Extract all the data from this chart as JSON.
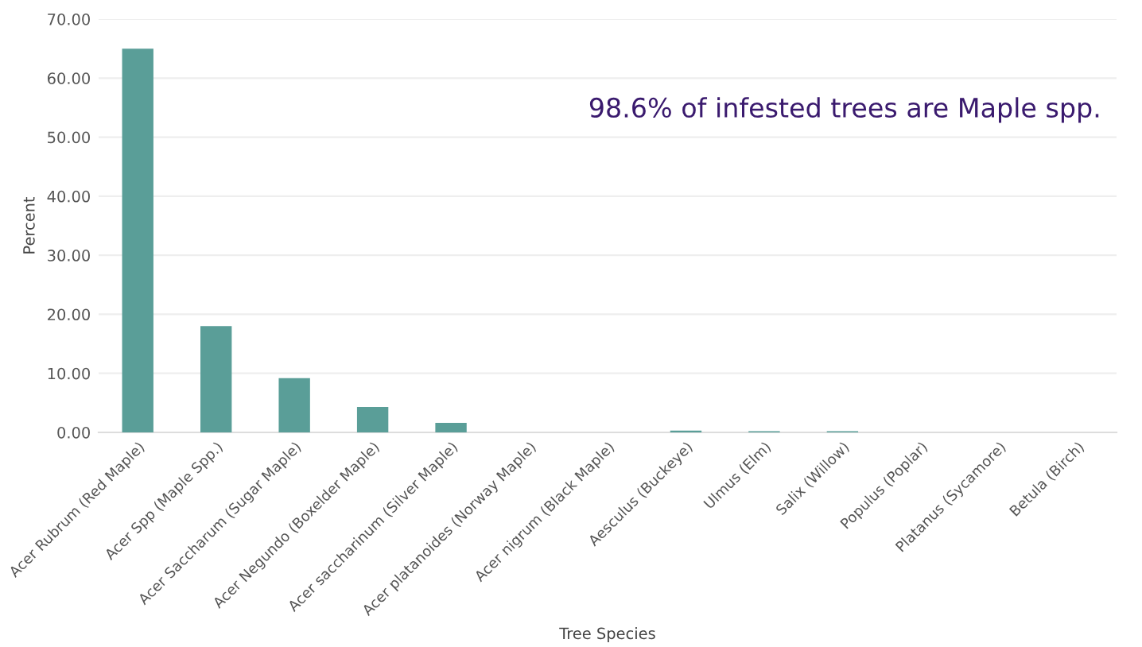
{
  "chart_data": {
    "type": "bar",
    "xlabel": "Tree Species",
    "ylabel": "Percent",
    "categories": [
      "Acer Rubrum (Red Maple)",
      "Acer Spp (Maple Spp.)",
      "Acer Saccharum (Sugar Maple)",
      "Acer Negundo (Boxelder Maple)",
      "Acer saccharinum (Silver Maple)",
      "Acer platanoides (Norway Maple)",
      "Acer nigrum (Black Maple)",
      "Aesculus (Buckeye)",
      "Ulmus (Elm)",
      "Salix (Willow)",
      "Populus (Poplar)",
      "Platanus (Sycamore)",
      "Betula (Birch)"
    ],
    "values": [
      65.0,
      18.0,
      9.2,
      4.3,
      1.6,
      0,
      0,
      0.3,
      0.2,
      0.2,
      0,
      0,
      0
    ],
    "color": "#5a9e98",
    "ylim": [
      0,
      70
    ],
    "yticks": [
      {
        "value": 0,
        "label": "0.00"
      },
      {
        "value": 10,
        "label": "10.00"
      },
      {
        "value": 20,
        "label": "20.00"
      },
      {
        "value": 30,
        "label": "30.00"
      },
      {
        "value": 40,
        "label": "40.00"
      },
      {
        "value": 50,
        "label": "50.00"
      },
      {
        "value": 60,
        "label": "60.00"
      },
      {
        "value": 70,
        "label": "70.00"
      }
    ],
    "grid": "y",
    "annotations": [
      "98.6% of infested trees are Maple spp."
    ]
  }
}
